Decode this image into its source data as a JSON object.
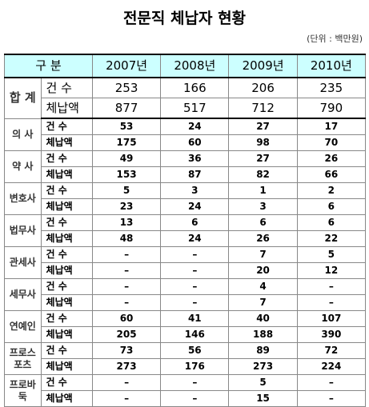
{
  "header": {
    "title": "전문직 체납자 현황",
    "unit": "(단위 : 백만원)"
  },
  "table": {
    "columns": [
      "구 분",
      "2007년",
      "2008년",
      "2009년",
      "2010년"
    ],
    "groups": [
      {
        "label": "합 계",
        "rows": [
          {
            "label": "건 수",
            "values": [
              253,
              166,
              206,
              235
            ]
          },
          {
            "label": "체납액",
            "values": [
              877,
              517,
              712,
              790
            ]
          }
        ]
      },
      {
        "label": "의 사",
        "rows": [
          {
            "label": "건 수",
            "values": [
              53,
              24,
              27,
              17
            ]
          },
          {
            "label": "체납액",
            "values": [
              175,
              60,
              98,
              70
            ]
          }
        ]
      },
      {
        "label": "약 사",
        "rows": [
          {
            "label": "건 수",
            "values": [
              49,
              36,
              27,
              26
            ]
          },
          {
            "label": "체납액",
            "values": [
              153,
              87,
              82,
              66
            ]
          }
        ]
      },
      {
        "label": "변호사",
        "rows": [
          {
            "label": "건 수",
            "values": [
              5,
              3,
              1,
              2
            ]
          },
          {
            "label": "체납액",
            "values": [
              23,
              24,
              3,
              6
            ]
          }
        ]
      },
      {
        "label": "법무사",
        "rows": [
          {
            "label": "건 수",
            "values": [
              13,
              6,
              6,
              6
            ]
          },
          {
            "label": "체납액",
            "values": [
              48,
              24,
              26,
              22
            ]
          }
        ]
      },
      {
        "label": "관세사",
        "rows": [
          {
            "label": "건 수",
            "values": [
              "–",
              "–",
              7,
              5
            ]
          },
          {
            "label": "체납액",
            "values": [
              "–",
              "–",
              20,
              12
            ]
          }
        ]
      },
      {
        "label": "세무사",
        "rows": [
          {
            "label": "건 수",
            "values": [
              "–",
              "–",
              4,
              "–"
            ]
          },
          {
            "label": "체납액",
            "values": [
              "–",
              "–",
              7,
              "–"
            ]
          }
        ]
      },
      {
        "label": "연예인",
        "rows": [
          {
            "label": "건 수",
            "values": [
              60,
              41,
              40,
              107
            ]
          },
          {
            "label": "체납액",
            "values": [
              205,
              146,
              188,
              390
            ]
          }
        ]
      },
      {
        "label": "프로스포츠",
        "rows": [
          {
            "label": "건 수",
            "values": [
              73,
              56,
              89,
              72
            ]
          },
          {
            "label": "체납액",
            "values": [
              273,
              176,
              273,
              224
            ]
          }
        ]
      },
      {
        "label": "프로바둑",
        "rows": [
          {
            "label": "건 수",
            "values": [
              "–",
              "–",
              5,
              "–"
            ]
          },
          {
            "label": "체납액",
            "values": [
              "–",
              "–",
              15,
              "–"
            ]
          }
        ]
      }
    ]
  }
}
